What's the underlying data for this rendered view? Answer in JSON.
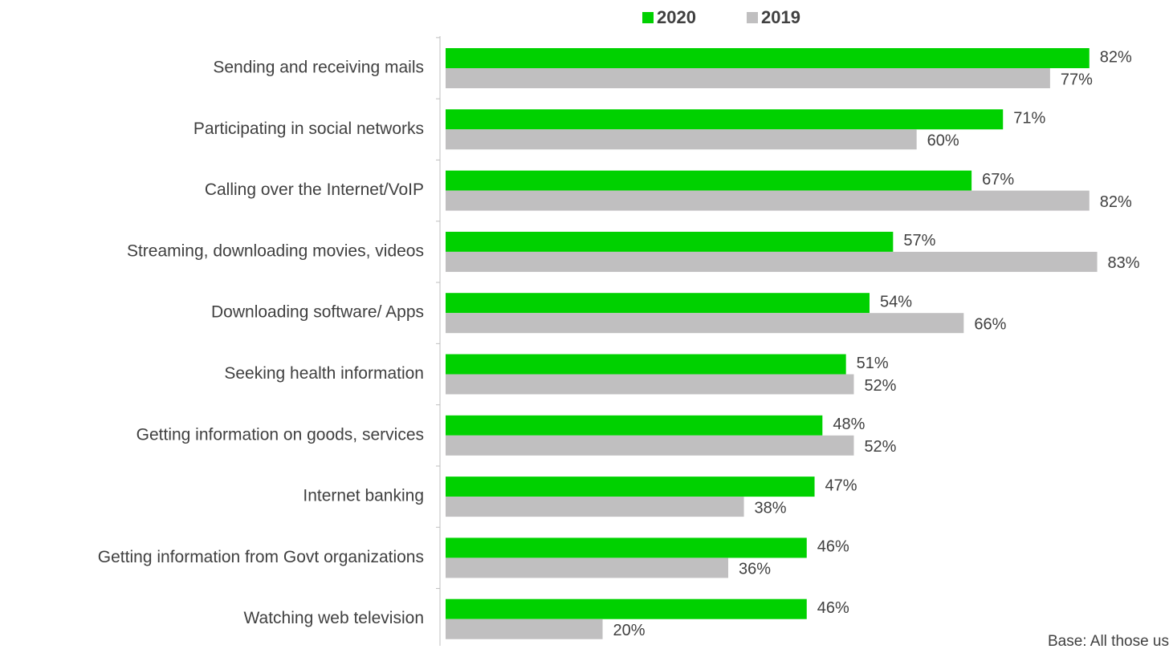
{
  "chart_data": {
    "type": "bar",
    "orientation": "horizontal",
    "categories": [
      "Sending and receiving mails",
      "Participating in social networks",
      "Calling over the Internet/VoIP",
      "Streaming, downloading movies, videos",
      "Downloading software/ Apps",
      "Seeking health information",
      "Getting information on goods, services",
      "Internet banking",
      "Getting information from Govt organizations",
      "Watching web television"
    ],
    "series": [
      {
        "name": "2020",
        "color": "#00d100",
        "values": [
          82,
          71,
          67,
          57,
          54,
          51,
          48,
          47,
          46,
          46
        ],
        "value_labels": [
          "82%",
          "71%",
          "67%",
          "57%",
          "54%",
          "51%",
          "48%",
          "47%",
          "46%",
          "46%"
        ]
      },
      {
        "name": "2019",
        "color": "#c0bfc0",
        "values": [
          77,
          60,
          82,
          83,
          66,
          52,
          52,
          38,
          36,
          20
        ],
        "value_labels": [
          "77%",
          "60%",
          "82%",
          "83%",
          "66%",
          "52%",
          "52%",
          "38%",
          "36%",
          "20%"
        ]
      }
    ],
    "xlim": [
      0,
      90
    ],
    "legend": "top",
    "annotation": "Base: All those us"
  }
}
